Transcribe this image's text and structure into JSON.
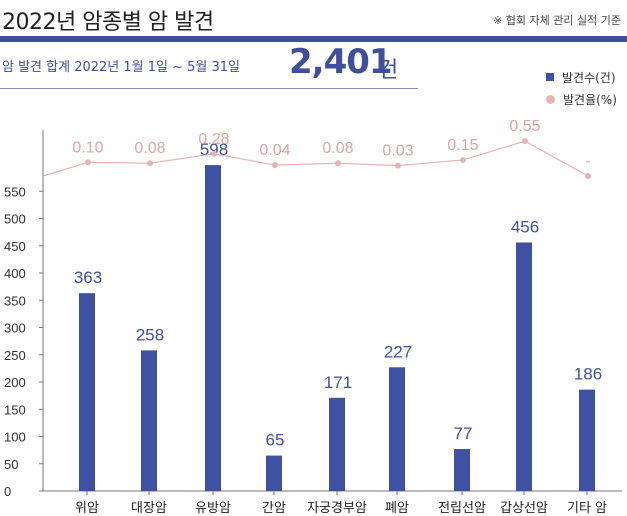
{
  "header": {
    "title": "2022년 암종별 암 발견",
    "note": "※ 협회 자체 관리 실적 기준"
  },
  "summary": {
    "label": "암 발견 합계  2022년 1월 1일 ~ 5월 31일",
    "total": "2,401",
    "unit": "건"
  },
  "colors": {
    "bar": "#3f51a3",
    "rate_line": "#e8b3b3",
    "bar_label": "#3f51a3",
    "rate_label": "#e0a4a4"
  },
  "chart_data": {
    "type": "bar",
    "categories": [
      "위암",
      "대장암",
      "유방암",
      "간암",
      "자궁경부암",
      "폐암",
      "전립선암",
      "갑상선암",
      "기타 암"
    ],
    "series": [
      {
        "name": "발견수(건)",
        "type": "bar",
        "values": [
          363,
          258,
          598,
          65,
          171,
          227,
          77,
          456,
          186
        ]
      },
      {
        "name": "발견율(%)",
        "type": "line",
        "values": [
          0.1,
          0.08,
          0.28,
          0.04,
          0.08,
          0.03,
          0.15,
          0.55,
          null
        ],
        "labels": [
          "0.10",
          "0.08",
          "0.28",
          "0.04",
          "0.08",
          "0.03",
          "0.15",
          "0.55",
          "-"
        ]
      }
    ],
    "yticks": [
      0,
      50,
      100,
      150,
      200,
      250,
      300,
      350,
      400,
      450,
      500,
      550
    ],
    "ylim": [
      0,
      600
    ],
    "legend": {
      "position": "top-right",
      "items": [
        "발견수(건)",
        "발견율(%)"
      ]
    }
  }
}
